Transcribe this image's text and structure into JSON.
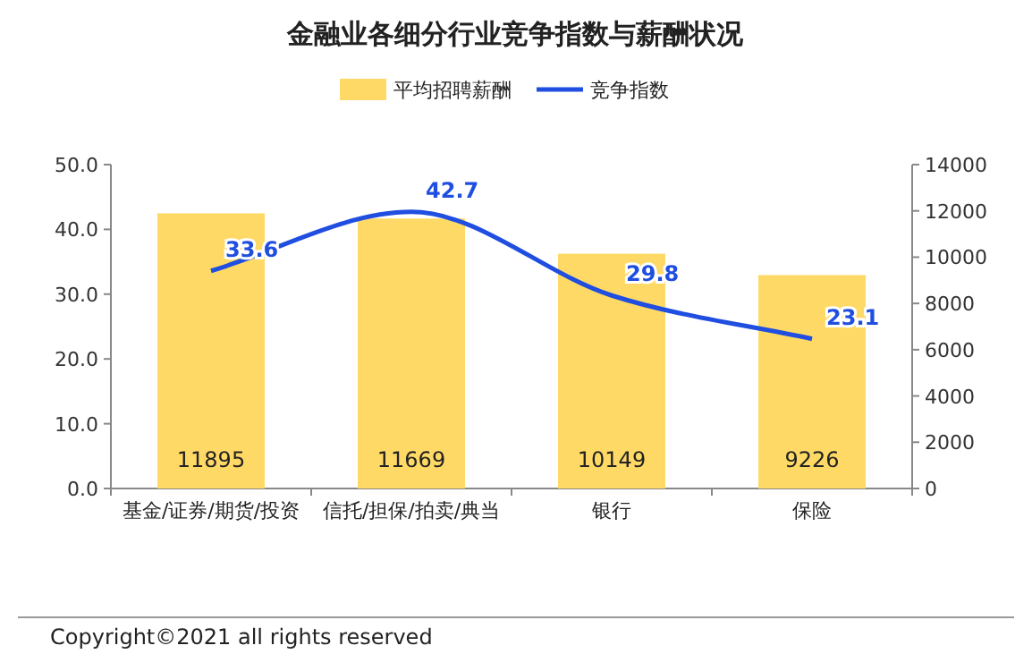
{
  "chart_data": {
    "type": "bar",
    "title": "金融业各细分行业竞争指数与薪酬状况",
    "categories": [
      "基金/证券/期货/投资",
      "信托/担保/拍卖/典当",
      "银行",
      "保险"
    ],
    "series": [
      {
        "name": "平均招聘薪酬",
        "axis": "y2",
        "color": "#ffd966",
        "values": [
          11895,
          11669,
          10149,
          9226
        ]
      },
      {
        "name": "竞争指数",
        "type": "line",
        "color": "#1f4ee0",
        "values": [
          33.6,
          42.7,
          29.8,
          23.1
        ]
      }
    ],
    "ylim": [
      0,
      50
    ],
    "yticks": [
      {
        "value": 0,
        "label": "0.0"
      },
      {
        "value": 10,
        "label": "10.0"
      },
      {
        "value": 20,
        "label": "20.0"
      },
      {
        "value": 30,
        "label": "30.0"
      },
      {
        "value": 40,
        "label": "40.0"
      },
      {
        "value": 50,
        "label": "50.0"
      }
    ],
    "y2lim": [
      0,
      14000
    ],
    "y2ticks": [
      0,
      2000,
      4000,
      6000,
      8000,
      10000,
      12000,
      14000
    ],
    "data_labels": true,
    "legend": "top",
    "marker": "none",
    "line_style": "solid",
    "annotations": [
      "Copyright©2021 all rights reserved"
    ]
  }
}
